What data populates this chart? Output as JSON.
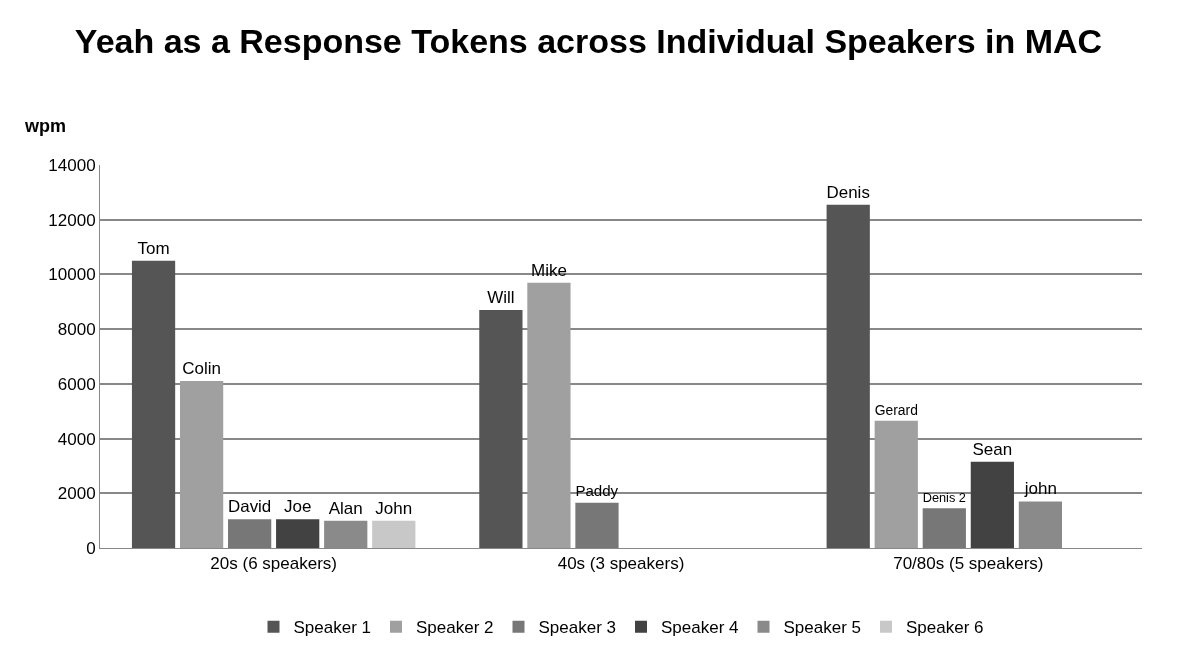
{
  "chart_data": {
    "type": "bar",
    "title": "Yeah as a Response Tokens across Individual Speakers in MAC",
    "ylabel": "wpm",
    "categories": [
      "20s (6 speakers)",
      "40s (3 speakers)",
      "70/80s (5 speakers)"
    ],
    "series": [
      {
        "name": "Speaker 1",
        "color": "#555555",
        "values": [
          10500,
          8700,
          12550
        ],
        "value_labels": [
          "Tom",
          "Will",
          "Denis"
        ]
      },
      {
        "name": "Speaker 2",
        "color": "#a0a0a0",
        "values": [
          6100,
          9700,
          4650
        ],
        "value_labels": [
          "Colin",
          "Mike",
          "Gerard"
        ]
      },
      {
        "name": "Speaker 3",
        "color": "#777777",
        "values": [
          1050,
          1650,
          1450
        ],
        "value_labels": [
          "David",
          "Paddy",
          "Denis 2"
        ]
      },
      {
        "name": "Speaker 4",
        "color": "#424242",
        "values": [
          1050,
          null,
          3150
        ],
        "value_labels": [
          "Joe",
          null,
          "Sean"
        ]
      },
      {
        "name": "Speaker 5",
        "color": "#8a8a8a",
        "values": [
          1000,
          null,
          1700
        ],
        "value_labels": [
          "Alan",
          null,
          "john"
        ]
      },
      {
        "name": "Speaker 6",
        "color": "#c8c8c8",
        "values": [
          1000,
          null,
          null
        ],
        "value_labels": [
          "John",
          null,
          null
        ]
      }
    ],
    "ylim": [
      0,
      14000
    ],
    "yticks": [
      0,
      2000,
      4000,
      6000,
      8000,
      10000,
      12000,
      14000
    ],
    "grid": "y",
    "legend": "bottom"
  }
}
